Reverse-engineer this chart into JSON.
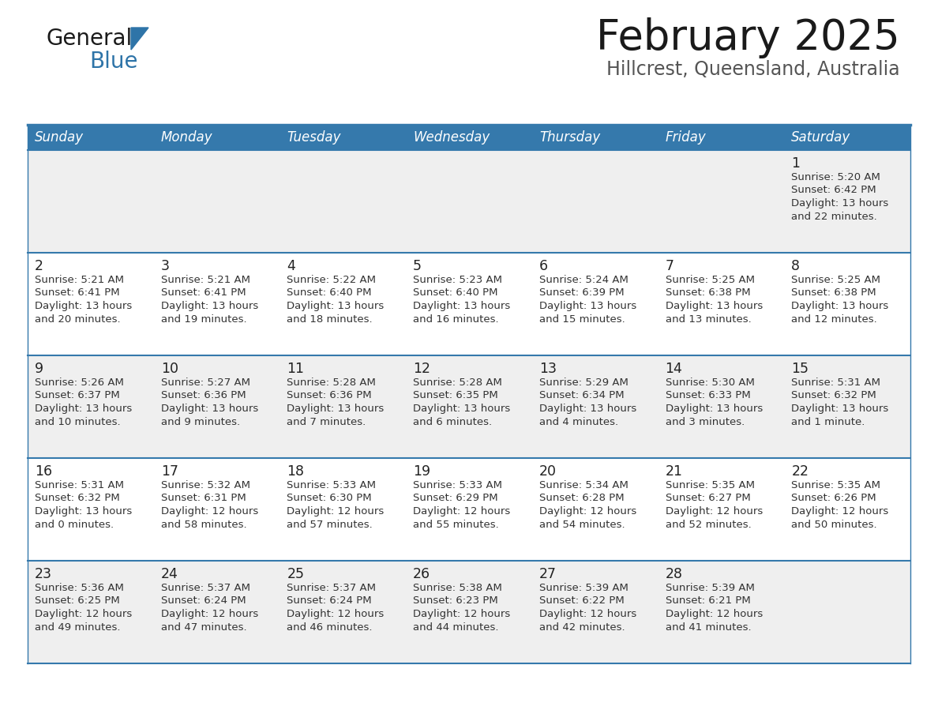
{
  "title": "February 2025",
  "subtitle": "Hillcrest, Queensland, Australia",
  "header_bg": "#3579AC",
  "header_text_color": "#FFFFFF",
  "row_bg_light": "#EFEFEF",
  "row_bg_white": "#FFFFFF",
  "separator_color": "#3579AC",
  "day_headers": [
    "Sunday",
    "Monday",
    "Tuesday",
    "Wednesday",
    "Thursday",
    "Friday",
    "Saturday"
  ],
  "calendar_data": [
    [
      null,
      null,
      null,
      null,
      null,
      null,
      {
        "day": 1,
        "sunrise": "5:20 AM",
        "sunset": "6:42 PM",
        "daylight_h": "13 hours",
        "daylight_m": "and 22 minutes."
      }
    ],
    [
      {
        "day": 2,
        "sunrise": "5:21 AM",
        "sunset": "6:41 PM",
        "daylight_h": "13 hours",
        "daylight_m": "and 20 minutes."
      },
      {
        "day": 3,
        "sunrise": "5:21 AM",
        "sunset": "6:41 PM",
        "daylight_h": "13 hours",
        "daylight_m": "and 19 minutes."
      },
      {
        "day": 4,
        "sunrise": "5:22 AM",
        "sunset": "6:40 PM",
        "daylight_h": "13 hours",
        "daylight_m": "and 18 minutes."
      },
      {
        "day": 5,
        "sunrise": "5:23 AM",
        "sunset": "6:40 PM",
        "daylight_h": "13 hours",
        "daylight_m": "and 16 minutes."
      },
      {
        "day": 6,
        "sunrise": "5:24 AM",
        "sunset": "6:39 PM",
        "daylight_h": "13 hours",
        "daylight_m": "and 15 minutes."
      },
      {
        "day": 7,
        "sunrise": "5:25 AM",
        "sunset": "6:38 PM",
        "daylight_h": "13 hours",
        "daylight_m": "and 13 minutes."
      },
      {
        "day": 8,
        "sunrise": "5:25 AM",
        "sunset": "6:38 PM",
        "daylight_h": "13 hours",
        "daylight_m": "and 12 minutes."
      }
    ],
    [
      {
        "day": 9,
        "sunrise": "5:26 AM",
        "sunset": "6:37 PM",
        "daylight_h": "13 hours",
        "daylight_m": "and 10 minutes."
      },
      {
        "day": 10,
        "sunrise": "5:27 AM",
        "sunset": "6:36 PM",
        "daylight_h": "13 hours",
        "daylight_m": "and 9 minutes."
      },
      {
        "day": 11,
        "sunrise": "5:28 AM",
        "sunset": "6:36 PM",
        "daylight_h": "13 hours",
        "daylight_m": "and 7 minutes."
      },
      {
        "day": 12,
        "sunrise": "5:28 AM",
        "sunset": "6:35 PM",
        "daylight_h": "13 hours",
        "daylight_m": "and 6 minutes."
      },
      {
        "day": 13,
        "sunrise": "5:29 AM",
        "sunset": "6:34 PM",
        "daylight_h": "13 hours",
        "daylight_m": "and 4 minutes."
      },
      {
        "day": 14,
        "sunrise": "5:30 AM",
        "sunset": "6:33 PM",
        "daylight_h": "13 hours",
        "daylight_m": "and 3 minutes."
      },
      {
        "day": 15,
        "sunrise": "5:31 AM",
        "sunset": "6:32 PM",
        "daylight_h": "13 hours",
        "daylight_m": "and 1 minute."
      }
    ],
    [
      {
        "day": 16,
        "sunrise": "5:31 AM",
        "sunset": "6:32 PM",
        "daylight_h": "13 hours",
        "daylight_m": "and 0 minutes."
      },
      {
        "day": 17,
        "sunrise": "5:32 AM",
        "sunset": "6:31 PM",
        "daylight_h": "12 hours",
        "daylight_m": "and 58 minutes."
      },
      {
        "day": 18,
        "sunrise": "5:33 AM",
        "sunset": "6:30 PM",
        "daylight_h": "12 hours",
        "daylight_m": "and 57 minutes."
      },
      {
        "day": 19,
        "sunrise": "5:33 AM",
        "sunset": "6:29 PM",
        "daylight_h": "12 hours",
        "daylight_m": "and 55 minutes."
      },
      {
        "day": 20,
        "sunrise": "5:34 AM",
        "sunset": "6:28 PM",
        "daylight_h": "12 hours",
        "daylight_m": "and 54 minutes."
      },
      {
        "day": 21,
        "sunrise": "5:35 AM",
        "sunset": "6:27 PM",
        "daylight_h": "12 hours",
        "daylight_m": "and 52 minutes."
      },
      {
        "day": 22,
        "sunrise": "5:35 AM",
        "sunset": "6:26 PM",
        "daylight_h": "12 hours",
        "daylight_m": "and 50 minutes."
      }
    ],
    [
      {
        "day": 23,
        "sunrise": "5:36 AM",
        "sunset": "6:25 PM",
        "daylight_h": "12 hours",
        "daylight_m": "and 49 minutes."
      },
      {
        "day": 24,
        "sunrise": "5:37 AM",
        "sunset": "6:24 PM",
        "daylight_h": "12 hours",
        "daylight_m": "and 47 minutes."
      },
      {
        "day": 25,
        "sunrise": "5:37 AM",
        "sunset": "6:24 PM",
        "daylight_h": "12 hours",
        "daylight_m": "and 46 minutes."
      },
      {
        "day": 26,
        "sunrise": "5:38 AM",
        "sunset": "6:23 PM",
        "daylight_h": "12 hours",
        "daylight_m": "and 44 minutes."
      },
      {
        "day": 27,
        "sunrise": "5:39 AM",
        "sunset": "6:22 PM",
        "daylight_h": "12 hours",
        "daylight_m": "and 42 minutes."
      },
      {
        "day": 28,
        "sunrise": "5:39 AM",
        "sunset": "6:21 PM",
        "daylight_h": "12 hours",
        "daylight_m": "and 41 minutes."
      },
      null
    ]
  ],
  "logo_general_color": "#1a1a1a",
  "logo_blue_color": "#2E74A8",
  "title_fontsize": 38,
  "subtitle_fontsize": 17,
  "header_fontsize": 12,
  "day_num_fontsize": 12,
  "cell_text_fontsize": 9.5
}
